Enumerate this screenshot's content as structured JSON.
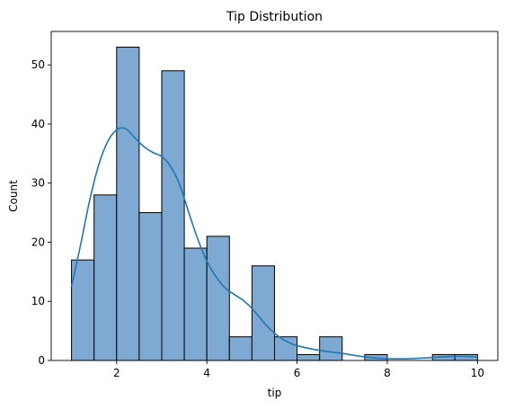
{
  "chart_data": {
    "type": "bar",
    "title": "Tip Distribution",
    "xlabel": "tip",
    "ylabel": "Count",
    "xlim": [
      0.55,
      10.45
    ],
    "ylim": [
      0,
      55.65
    ],
    "x_ticks": [
      2,
      4,
      6,
      8,
      10
    ],
    "y_ticks": [
      0,
      10,
      20,
      30,
      40,
      50
    ],
    "bin_width": 0.5,
    "bins": [
      {
        "start": 1.0,
        "end": 1.5,
        "count": 17
      },
      {
        "start": 1.5,
        "end": 2.0,
        "count": 28
      },
      {
        "start": 2.0,
        "end": 2.5,
        "count": 53
      },
      {
        "start": 2.5,
        "end": 3.0,
        "count": 25
      },
      {
        "start": 3.0,
        "end": 3.5,
        "count": 49
      },
      {
        "start": 3.5,
        "end": 4.0,
        "count": 19
      },
      {
        "start": 4.0,
        "end": 4.5,
        "count": 21
      },
      {
        "start": 4.5,
        "end": 5.0,
        "count": 4
      },
      {
        "start": 5.0,
        "end": 5.5,
        "count": 16
      },
      {
        "start": 5.5,
        "end": 6.0,
        "count": 4
      },
      {
        "start": 6.0,
        "end": 6.5,
        "count": 1
      },
      {
        "start": 6.5,
        "end": 7.0,
        "count": 4
      },
      {
        "start": 7.0,
        "end": 7.5,
        "count": 0
      },
      {
        "start": 7.5,
        "end": 8.0,
        "count": 1
      },
      {
        "start": 8.0,
        "end": 8.5,
        "count": 0
      },
      {
        "start": 8.5,
        "end": 9.0,
        "count": 0
      },
      {
        "start": 9.0,
        "end": 9.5,
        "count": 1
      },
      {
        "start": 9.5,
        "end": 10.0,
        "count": 1
      }
    ],
    "kde": {
      "x": [
        1.0,
        1.2,
        1.4,
        1.6,
        1.8,
        2.0,
        2.2,
        2.4,
        2.6,
        2.8,
        3.0,
        3.2,
        3.4,
        3.6,
        3.8,
        4.0,
        4.2,
        4.4,
        4.6,
        4.8,
        5.0,
        5.2,
        5.4,
        5.6,
        5.8,
        6.0,
        6.5,
        7.0,
        7.5,
        8.0,
        8.5,
        9.0,
        9.5,
        10.0
      ],
      "y": [
        12.5,
        19.5,
        27.0,
        33.0,
        37.0,
        39.0,
        39.2,
        37.7,
        36.2,
        35.2,
        34.5,
        32.8,
        29.7,
        25.0,
        20.5,
        16.8,
        14.2,
        12.3,
        11.2,
        10.2,
        8.8,
        7.0,
        5.3,
        4.0,
        3.1,
        2.5,
        1.7,
        1.2,
        0.6,
        0.3,
        0.3,
        0.5,
        0.7,
        0.6
      ]
    },
    "colors": {
      "bar_fill": "#7ea9d2",
      "bar_edge": "#000000",
      "kde_line": "#1f77b4"
    },
    "grid": false,
    "legend": "none"
  }
}
